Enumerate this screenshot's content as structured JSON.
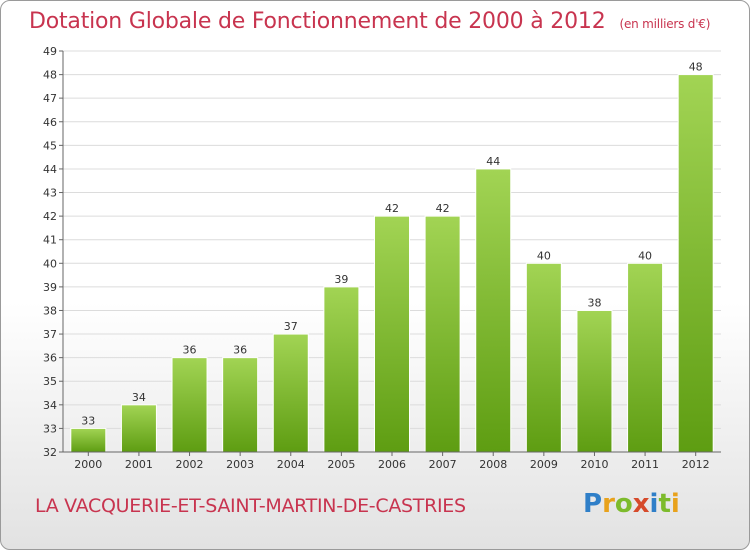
{
  "title": "Dotation Globale de Fonctionnement de 2000 à 2012",
  "unit": "(en milliers d'€)",
  "commune": "LA VACQUERIE-ET-SAINT-MARTIN-DE-CASTRIES",
  "logo": {
    "text": "Proxiti",
    "letters": [
      {
        "ch": "P",
        "color": "#2f7fc8"
      },
      {
        "ch": "r",
        "color": "#e8a21c"
      },
      {
        "ch": "o",
        "color": "#7dbb2c"
      },
      {
        "ch": "x",
        "color": "#d64a2b"
      },
      {
        "ch": "i",
        "color": "#2f7fc8"
      },
      {
        "ch": "t",
        "color": "#7dbb2c"
      },
      {
        "ch": "i",
        "color": "#e8a21c"
      }
    ]
  },
  "colors": {
    "bar_light": "#a2d454",
    "bar_dark": "#5e9d12",
    "text": "#c8344f",
    "grid": "#dcdcdc"
  },
  "chart_data": {
    "type": "bar",
    "categories": [
      "2000",
      "2001",
      "2002",
      "2003",
      "2004",
      "2005",
      "2006",
      "2007",
      "2008",
      "2009",
      "2010",
      "2011",
      "2012"
    ],
    "values": [
      33,
      34,
      36,
      36,
      37,
      39,
      42,
      42,
      44,
      40,
      38,
      40,
      48
    ],
    "ylim": [
      32,
      49
    ],
    "yticks": [
      32,
      33,
      34,
      35,
      36,
      37,
      38,
      39,
      40,
      41,
      42,
      43,
      44,
      45,
      46,
      47,
      48,
      49
    ],
    "grid": true,
    "data_labels": true
  }
}
